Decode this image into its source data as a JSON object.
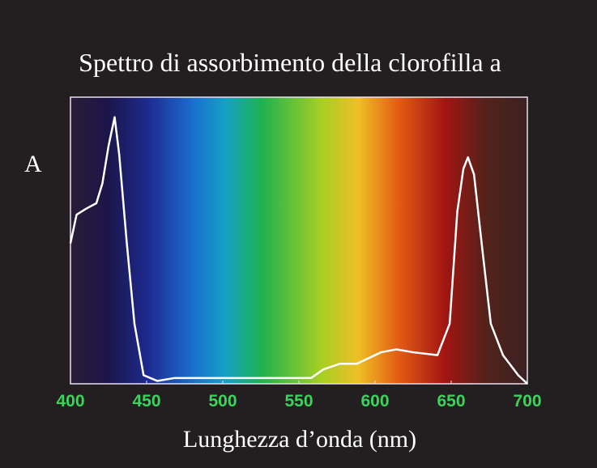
{
  "chart_data": {
    "type": "line",
    "title": "Spettro di assorbimento della clorofilla a",
    "xlabel": "Lunghezza d’onda (nm)",
    "ylabel": "A",
    "x": [
      400,
      404,
      410,
      417,
      421,
      425,
      429,
      432,
      437,
      442,
      448,
      457,
      468,
      492,
      513,
      558,
      566,
      577,
      588,
      604,
      614,
      625,
      641,
      649,
      654,
      658,
      661,
      665,
      670,
      676,
      684,
      694,
      700
    ],
    "series": [
      {
        "name": "A",
        "color": "#ffffff",
        "values": [
          0.49,
          0.59,
          0.61,
          0.63,
          0.7,
          0.83,
          0.93,
          0.8,
          0.49,
          0.21,
          0.03,
          0.01,
          0.02,
          0.02,
          0.02,
          0.02,
          0.05,
          0.07,
          0.07,
          0.11,
          0.12,
          0.11,
          0.1,
          0.21,
          0.6,
          0.75,
          0.79,
          0.73,
          0.49,
          0.21,
          0.1,
          0.03,
          0.0
        ]
      }
    ],
    "xlim": [
      400,
      700
    ],
    "ylim": [
      0,
      1
    ],
    "xticks": [
      400,
      450,
      500,
      550,
      600,
      650,
      700
    ],
    "tick_color": "#3bd35c"
  }
}
